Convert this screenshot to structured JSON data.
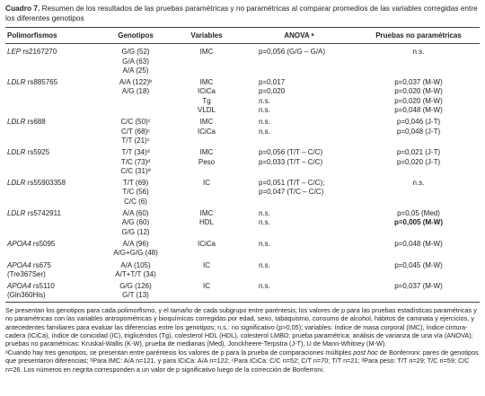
{
  "caption": {
    "label": "Cuadro 7.",
    "text": "Resumen de los resultados de las pruebas paramétricas y no paramétricas al comparar promedios de las variables corregidas entre los diferentes genotipos"
  },
  "table": {
    "headers": [
      "Polimorfismos",
      "Genotipos",
      "Variables",
      "ANOVA ᵃ",
      "Pruebas no paramétricas"
    ],
    "groups": [
      {
        "gene": "LEP",
        "rs": "rs2167270",
        "genotipos": [
          "G/G (52)",
          "G/A (63)",
          "A/A (25)"
        ],
        "variables": [
          "IMC"
        ],
        "anova": [
          "p=0,056 (G/G – G/A)"
        ],
        "no_parametricas": [
          "n.s."
        ]
      },
      {
        "gene": "LDLR",
        "rs": "rs885765",
        "genotipos": [
          "A/A (122)ᵇ",
          "A/G (18)"
        ],
        "variables": [
          "IMC",
          "ICiCa",
          "Tg",
          "VLDL"
        ],
        "anova": [
          "p=0,017",
          "p=0,020",
          "n.s.",
          "n.s."
        ],
        "no_parametricas": [
          "p=0,037 (M-W)",
          "p=0,020 (M-W)",
          "p=0,020 (M-W)",
          "p=0,048 (M-W)"
        ]
      },
      {
        "gene": "LDLR",
        "rs": "rs688",
        "genotipos": [
          "C/C (50)ᶜ",
          "C/T (68)ᶜ",
          "T/T (21)ᶜ"
        ],
        "variables": [
          "IMC",
          "ICiCa"
        ],
        "anova": [
          "n.s.",
          "n.s."
        ],
        "no_parametricas": [
          "p=0,046 (J-T)",
          "p=0,048 (J-T)"
        ]
      },
      {
        "gene": "LDLR",
        "rs": "rs5925",
        "genotipos": [
          "T/T (34)ᵈ",
          "T/C (73)ᵈ",
          "C/C (31)ᵈ"
        ],
        "variables": [
          "IMC",
          "Peso"
        ],
        "anova": [
          "p=0,056 (T/T – C/C)",
          "p=0,033 (T/T – C/C)"
        ],
        "no_parametricas": [
          "p=0,021 (J-T)",
          "p=0,020 (J-T)"
        ]
      },
      {
        "gene": "LDLR",
        "rs": "rs55903358",
        "genotipos": [
          "T/T (69)",
          "T/C (56)",
          "C/C (6)"
        ],
        "variables": [
          "IC"
        ],
        "anova": [
          "p=0,051 (T/T – C/C);",
          "p=0,047 (T/C – C/C)"
        ],
        "no_parametricas": [
          "n.s."
        ]
      },
      {
        "gene": "LDLR",
        "rs": "rs5742911",
        "genotipos": [
          "A/A (60)",
          "A/G (60)",
          "G/G (12)"
        ],
        "variables": [
          "IMC",
          "HDL"
        ],
        "anova": [
          "n.s.",
          "n.s."
        ],
        "no_parametricas": [
          "p=0,05 (Med)",
          {
            "text": "p=0,005 (M-W)",
            "bold": true
          }
        ]
      },
      {
        "gene": "APOA4",
        "rs": "rs5095",
        "genotipos": [
          "A/A (96)",
          "A/G+G/G (48)"
        ],
        "variables": [
          "ICiCa"
        ],
        "anova": [
          "n.s."
        ],
        "no_parametricas": [
          "p=0,048 (M-W)"
        ]
      },
      {
        "gene": "APOA4",
        "rs": "rs675",
        "note": "(Tre367Ser)",
        "genotipos": [
          "A/A (105)",
          "A/T+T/T (34)"
        ],
        "variables": [
          "IC"
        ],
        "anova": [
          "n.s."
        ],
        "no_parametricas": [
          "p=0,045 (M-W)"
        ]
      },
      {
        "gene": "APOA4",
        "rs": "rs5110",
        "note": "(Gln360His)",
        "genotipos": [
          "G/G (126)",
          "G/T (13)"
        ],
        "variables": [
          "IC"
        ],
        "anova": [
          "n.s."
        ],
        "no_parametricas": [
          "p=0,037 (M-W)"
        ]
      }
    ]
  },
  "footnotes": [
    "Se presentan los genotipos para cada polimorfismo, y el tamaño de cada subgrupo entre paréntesis; los valores de p para las pruebas estadísticas paramétricas y no paramétricas con las variables antropométricas y bioquímicas corregidas por edad, sexo, tabaquismo, consumo de alcohol, hábitos de caminata y ejercicios, y antecedentes familiares para evaluar las diferencias entre los genotipos; n.s.: no significativo (p>0,05); variables: índice de masa corporal (IMC), índice cintura-cadera (ICiCa), índice de conicidad (IC), triglicéridos (Tg), colesterol HDL (HDL), colesterol LMBD; prueba paramétrica: análisis de varianza de una vía (ANOVA); pruebas no paramétricas: Kruskal-Wallis (K-W), prueba de medianas (Med), Jonckheere-Terpstra (J-T), U de Mann-Whitney (M-W).",
    [
      "ᵃCuando hay tres genotipos, se presentan entre paréntesis los valores de p para la prueba de comparaciones múltiples ",
      "post hoc",
      " de Bonferroni: pares de genotipos que presentaron diferencias; ᵇPara IMC: A/A n=121, y para ICiCa: A/A n=122; ᶜPara ICiCa: C/C n=52; C/T n=70; T/T n=21; ᵈPara peso: T/T n=29; T/C n=59; C/C n=26. Los números en negrita corresponden a un valor de p significativo luego de la corrección de Bonferroni."
    ]
  ]
}
